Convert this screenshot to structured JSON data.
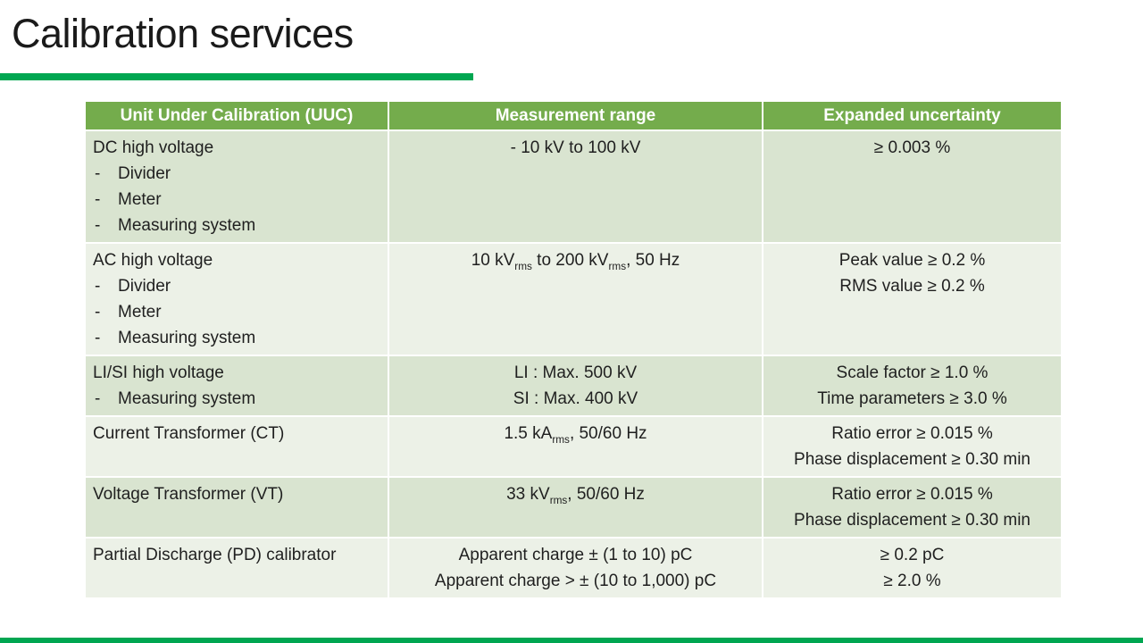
{
  "slide": {
    "title": "Calibration services"
  },
  "colors": {
    "accent_green": "#00a651",
    "header_green": "#74ac4c",
    "band_dark": "#d9e4d0",
    "band_light": "#ecf1e7",
    "header_text": "#ffffff",
    "body_text": "#1f1f1f"
  },
  "table": {
    "headers": [
      "Unit Under Calibration (UUC)",
      "Measurement range",
      "Expanded uncertainty"
    ],
    "rows": [
      {
        "uuc": {
          "title": "DC high voltage",
          "bullets": [
            "Divider",
            "Meter",
            "Measuring system"
          ]
        },
        "range": [
          "- 10 kV to 100 kV"
        ],
        "uncertainty": [
          "≥ 0.003 %"
        ]
      },
      {
        "uuc": {
          "title": "AC high voltage",
          "bullets": [
            "Divider",
            "Meter",
            "Measuring system"
          ]
        },
        "range": [
          "10 kV_{rms} to 200 kV_{rms}, 50 Hz"
        ],
        "uncertainty": [
          "Peak value ≥ 0.2 %",
          "RMS value ≥ 0.2 %"
        ]
      },
      {
        "uuc": {
          "title": "LI/SI high voltage",
          "bullets": [
            "Measuring system"
          ]
        },
        "range": [
          "LI : Max. 500 kV",
          "SI : Max. 400 kV"
        ],
        "uncertainty": [
          "Scale factor ≥ 1.0 %",
          "Time parameters ≥ 3.0 %"
        ]
      },
      {
        "uuc": {
          "title": "Current Transformer (CT)",
          "bullets": []
        },
        "range": [
          "1.5 kA_{rms}, 50/60 Hz"
        ],
        "uncertainty": [
          "Ratio error ≥ 0.015 %",
          "Phase displacement ≥ 0.30 min"
        ]
      },
      {
        "uuc": {
          "title": "Voltage Transformer (VT)",
          "bullets": []
        },
        "range": [
          "33 kV_{rms}, 50/60 Hz"
        ],
        "uncertainty": [
          "Ratio error ≥ 0.015 %",
          "Phase displacement ≥ 0.30 min"
        ]
      },
      {
        "uuc": {
          "title": "Partial Discharge (PD) calibrator",
          "bullets": []
        },
        "range": [
          "Apparent charge ± (1 to 10) pC",
          "Apparent charge > ± (10 to 1,000) pC"
        ],
        "uncertainty": [
          "≥ 0.2 pC",
          "≥ 2.0 %"
        ]
      }
    ]
  }
}
